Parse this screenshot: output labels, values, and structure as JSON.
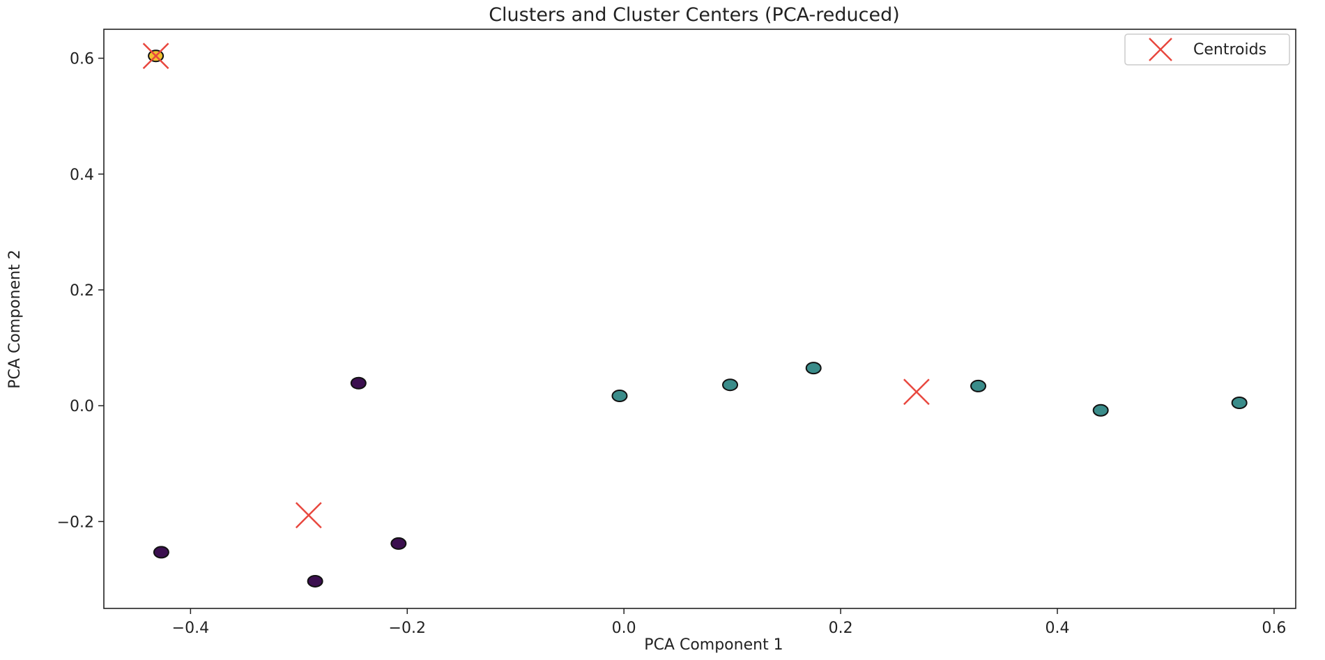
{
  "chart_data": {
    "type": "scatter",
    "title": "Clusters and Cluster Centers (PCA-reduced)",
    "xlabel": "PCA Component 1",
    "ylabel": "PCA Component 2",
    "xlim": [
      -0.48,
      0.62
    ],
    "ylim": [
      -0.35,
      0.65
    ],
    "xticks": [
      -0.4,
      -0.2,
      0.0,
      0.2,
      0.4,
      0.6
    ],
    "xtick_labels": [
      "−0.4",
      "−0.2",
      "0.0",
      "0.2",
      "0.4",
      "0.6"
    ],
    "yticks": [
      -0.2,
      0.0,
      0.2,
      0.4,
      0.6
    ],
    "ytick_labels": [
      "−0.2",
      "0.0",
      "0.2",
      "0.4",
      "0.6"
    ],
    "grid": false,
    "legend": {
      "position": "top-right",
      "entries": [
        "Centroids"
      ]
    },
    "series": [
      {
        "color": "#3b0f4f",
        "x": [
          -0.245,
          -0.427,
          -0.285,
          -0.208
        ],
        "y": [
          0.039,
          -0.253,
          -0.303,
          -0.238
        ]
      },
      {
        "color": "#3a8c8a",
        "x": [
          -0.004,
          0.098,
          0.175,
          0.327,
          0.44,
          0.568
        ],
        "y": [
          0.017,
          0.036,
          0.065,
          0.034,
          -0.008,
          0.005
        ]
      },
      {
        "color": "#f2c12e",
        "x": [
          -0.432
        ],
        "y": [
          0.604
        ]
      },
      {
        "name": "Centroids",
        "color": "#e8473e",
        "marker": "x",
        "x": [
          -0.432,
          -0.291,
          0.27
        ],
        "y": [
          0.604,
          -0.189,
          0.024
        ]
      }
    ]
  }
}
